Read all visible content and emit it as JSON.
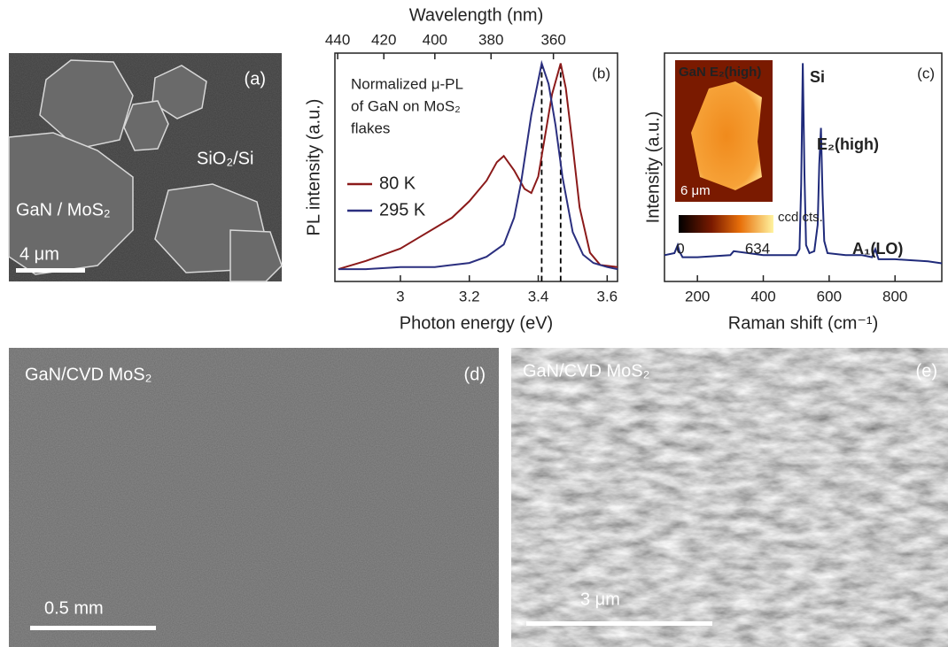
{
  "panel_a": {
    "label": "(a)",
    "substrate": "SiO₂/Si",
    "flakes": "GaN / MoS₂",
    "scale_bar": "4 μm"
  },
  "chart_data": [
    {
      "type": "line",
      "panel_label": "(b)",
      "xlabel": "Photon energy (eV)",
      "ylabel": "PL intensity (a.u.)",
      "x2label": "Wavelength (nm)",
      "annotation": [
        "Normalized μ-PL",
        "of GaN on MoS₂",
        "flakes"
      ],
      "xlim": [
        2.81,
        3.63
      ],
      "xticks": [
        3.0,
        3.2,
        3.4,
        3.6
      ],
      "ylim": [
        -0.06,
        1.05
      ],
      "x2ticks": [
        {
          "value": 2.818,
          "label": "440"
        },
        {
          "value": 2.952,
          "label": "420"
        },
        {
          "value": 3.1,
          "label": "400"
        },
        {
          "value": 3.263,
          "label": "380"
        },
        {
          "value": 3.444,
          "label": "360"
        }
      ],
      "vlines": [
        3.41,
        3.465
      ],
      "series": [
        {
          "name": "80 K",
          "color": "#8b1a1a",
          "x": [
            2.82,
            2.9,
            3.0,
            3.05,
            3.1,
            3.15,
            3.2,
            3.25,
            3.28,
            3.3,
            3.33,
            3.36,
            3.38,
            3.4,
            3.42,
            3.44,
            3.465,
            3.48,
            3.5,
            3.52,
            3.55,
            3.58,
            3.63
          ],
          "values": [
            0.0,
            0.04,
            0.1,
            0.15,
            0.2,
            0.25,
            0.33,
            0.43,
            0.52,
            0.55,
            0.48,
            0.39,
            0.37,
            0.45,
            0.65,
            0.85,
            1.0,
            0.88,
            0.6,
            0.3,
            0.08,
            0.02,
            0.01
          ]
        },
        {
          "name": "295 K",
          "color": "#2b2f7f",
          "x": [
            2.82,
            2.9,
            3.0,
            3.1,
            3.15,
            3.2,
            3.25,
            3.3,
            3.33,
            3.35,
            3.38,
            3.41,
            3.43,
            3.45,
            3.47,
            3.5,
            3.53,
            3.56,
            3.6,
            3.63
          ],
          "values": [
            0.0,
            0.0,
            0.01,
            0.01,
            0.02,
            0.03,
            0.06,
            0.12,
            0.25,
            0.42,
            0.75,
            1.0,
            0.9,
            0.7,
            0.45,
            0.18,
            0.07,
            0.03,
            0.01,
            0.0
          ]
        }
      ]
    },
    {
      "type": "line",
      "panel_label": "(c)",
      "xlabel": "Raman shift (cm⁻¹)",
      "ylabel": "Intensity (a.u.)",
      "xlim": [
        100,
        942
      ],
      "xticks": [
        200,
        400,
        600,
        800
      ],
      "ylim": [
        -0.08,
        1.05
      ],
      "peak_labels": [
        "Si",
        "E₂(high)",
        "A₁(LO)"
      ],
      "inset": {
        "title": "GaN E₂(high)",
        "scale_bar": "6 μm",
        "colorbar_label": "ccd cts.",
        "colorbar_ticks": [
          0,
          634
        ]
      },
      "series": [
        {
          "color": "#1f2a7a",
          "x": [
            100,
            130,
            140,
            145,
            155,
            200,
            300,
            310,
            400,
            500,
            510,
            515,
            520,
            525,
            530,
            540,
            555,
            565,
            570,
            575,
            580,
            585,
            595,
            650,
            700,
            730,
            740,
            750,
            800,
            900,
            942
          ],
          "values": [
            0.05,
            0.06,
            0.1,
            0.07,
            0.04,
            0.04,
            0.05,
            0.07,
            0.05,
            0.05,
            0.08,
            0.4,
            1.0,
            0.45,
            0.1,
            0.06,
            0.07,
            0.2,
            0.5,
            0.68,
            0.35,
            0.12,
            0.06,
            0.05,
            0.05,
            0.04,
            0.08,
            0.03,
            0.03,
            0.02,
            0.01
          ]
        }
      ]
    }
  ],
  "panel_d": {
    "label": "(d)",
    "title": "GaN/CVD MoS₂",
    "scale_bar": "0.5 mm"
  },
  "panel_e": {
    "label": "(e)",
    "title": "GaN/CVD MoS₂",
    "scale_bar": "3 μm"
  }
}
